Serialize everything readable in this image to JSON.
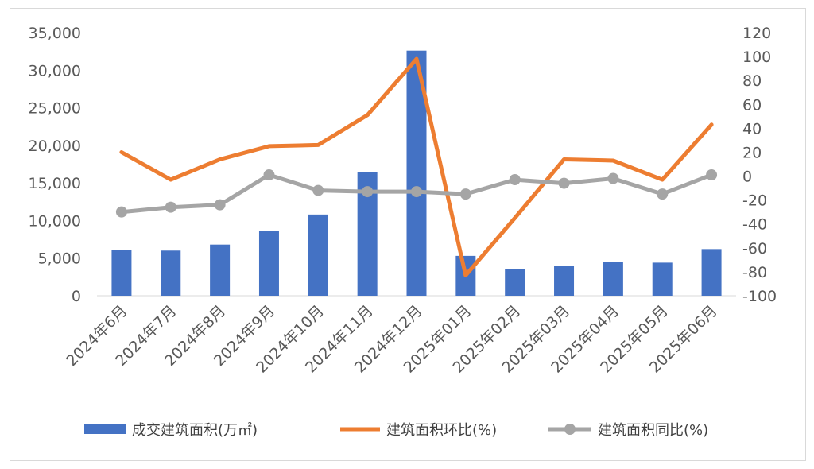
{
  "chart_data": {
    "type": "bar+line",
    "title": "",
    "categories": [
      "2024年6月",
      "2024年7月",
      "2024年8月",
      "2024年9月",
      "2024年10月",
      "2024年11月",
      "2024年12月",
      "2025年01月",
      "2025年02月",
      "2025年03月",
      "2025年04月",
      "2025年05月",
      "2025年06月"
    ],
    "left_axis": {
      "ylim": [
        0,
        35000
      ],
      "ticks": [
        "0",
        "5,000",
        "10,000",
        "15,000",
        "20,000",
        "25,000",
        "30,000",
        "35,000"
      ]
    },
    "right_axis": {
      "ylim": [
        -100,
        120
      ],
      "ticks": [
        "-100",
        "-80",
        "-60",
        "-40",
        "-20",
        "0",
        "20",
        "40",
        "60",
        "80",
        "100",
        "120"
      ]
    },
    "series": [
      {
        "name": "成交建筑面积(万㎡)",
        "type": "bar",
        "axis": "left",
        "color": "#4472C4",
        "values": [
          6100,
          6000,
          6800,
          8600,
          10800,
          16400,
          32600,
          5300,
          3500,
          4000,
          4500,
          4400,
          6200
        ]
      },
      {
        "name": "建筑面积环比(%)",
        "type": "line",
        "axis": "right",
        "color": "#ED7D31",
        "values": [
          20,
          -3,
          14,
          25,
          26,
          51,
          98,
          -83,
          -35,
          14,
          13,
          -3,
          43
        ]
      },
      {
        "name": "建筑面积同比(%)",
        "type": "line-marker",
        "axis": "right",
        "color": "#A5A5A5",
        "values": [
          -30,
          -26,
          -24,
          1,
          -12,
          -13,
          -13,
          -15,
          -3,
          -6,
          -2,
          -15,
          1
        ]
      }
    ],
    "grid": false,
    "legend": "bottom"
  }
}
